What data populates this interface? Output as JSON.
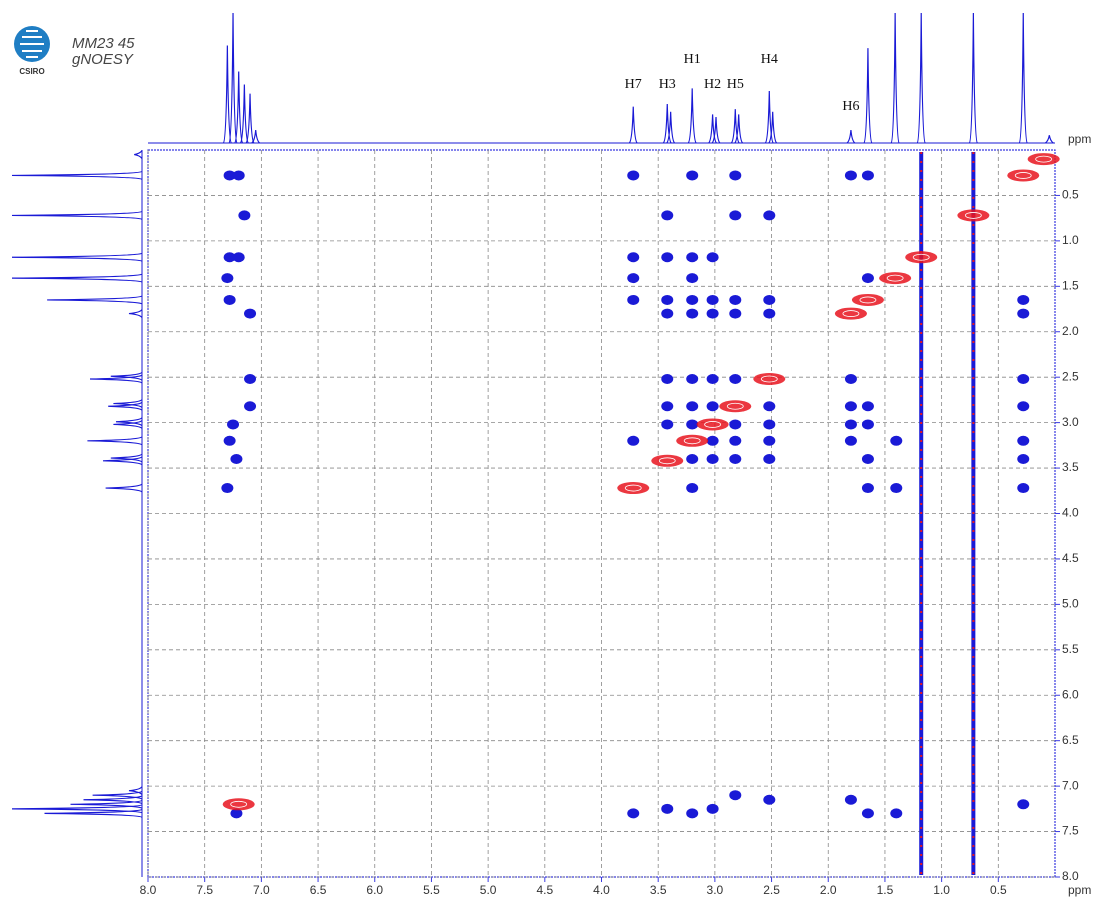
{
  "chart_data": {
    "type": "contour",
    "title_lines": [
      "MM23 45",
      "gNOESY"
    ],
    "logo_text": "CSIRO",
    "x_label": "ppm",
    "y_label": "ppm",
    "xlim": [
      8.0,
      0.0
    ],
    "ylim": [
      0.0,
      8.0
    ],
    "xticks": [
      {
        "value": 8.0,
        "label": "8.0"
      },
      7.5,
      {
        "value": 7.0,
        "label": "7.0"
      },
      6.5,
      {
        "value": 6.0,
        "label": "6.0"
      },
      5.5,
      {
        "value": 5.0,
        "label": "5.0"
      },
      4.5,
      {
        "value": 4.0,
        "label": "4.0"
      },
      3.5,
      {
        "value": 3.0,
        "label": "3.0"
      },
      2.5,
      {
        "value": 2.0,
        "label": "2.0"
      },
      1.5,
      {
        "value": 1.0,
        "label": "1.0"
      },
      0.5
    ],
    "yticks": [
      0.5,
      {
        "value": 1.0,
        "label": "1.0"
      },
      1.5,
      {
        "value": 2.0,
        "label": "2.0"
      },
      2.5,
      {
        "value": 3.0,
        "label": "3.0"
      },
      3.5,
      {
        "value": 4.0,
        "label": "4.0"
      },
      4.5,
      {
        "value": 5.0,
        "label": "5.0"
      },
      5.5,
      {
        "value": 6.0,
        "label": "6.0"
      },
      6.5,
      {
        "value": 7.0,
        "label": "7.0"
      },
      7.5,
      {
        "value": 8.0,
        "label": "8.0"
      }
    ],
    "grid": true,
    "projection": {
      "color": "#1a1ad6",
      "ppm": [
        7.3,
        7.25,
        7.2,
        7.15,
        7.1,
        7.05,
        3.72,
        3.42,
        3.39,
        3.2,
        3.02,
        2.99,
        2.82,
        2.79,
        2.52,
        2.49,
        1.8,
        1.65,
        1.41,
        1.18,
        0.72,
        0.28,
        0.05
      ],
      "heights": [
        75,
        100,
        55,
        45,
        38,
        10,
        28,
        30,
        24,
        42,
        22,
        20,
        26,
        22,
        40,
        24,
        10,
        73,
        100,
        100,
        100,
        100,
        6
      ]
    },
    "annotations": [
      {
        "text": "H7",
        "x": 3.72
      },
      {
        "text": "H3",
        "x": 3.42
      },
      {
        "text": "H1",
        "x": 3.2
      },
      {
        "text": "H2",
        "x": 3.02
      },
      {
        "text": "H5",
        "x": 2.82
      },
      {
        "text": "H4",
        "x": 2.52
      },
      {
        "text": "H6",
        "x": 1.8
      }
    ],
    "streaks": [
      1.18,
      0.72
    ],
    "series": [
      {
        "color": "#1a1ad6",
        "x": [
          7.28,
          7.2,
          3.72,
          3.2,
          2.82,
          1.8,
          1.65,
          7.15,
          3.42,
          2.82,
          2.52,
          7.28,
          7.2,
          3.72,
          3.42,
          3.2,
          3.02,
          7.3,
          3.72,
          3.2,
          1.65,
          7.28,
          3.72,
          3.42,
          3.2,
          3.02,
          2.82,
          2.52,
          0.28,
          7.1,
          3.42,
          3.2,
          3.02,
          2.82,
          2.52,
          0.28,
          7.1,
          3.42,
          3.2,
          3.02,
          2.82,
          1.8,
          0.28,
          7.1,
          3.42,
          3.2,
          3.02,
          2.52,
          1.8,
          1.65,
          0.28,
          7.25,
          3.42,
          3.2,
          2.82,
          2.52,
          1.8,
          1.65,
          7.28,
          3.72,
          3.02,
          2.82,
          2.52,
          1.8,
          1.4,
          0.28,
          7.22,
          3.2,
          3.02,
          2.82,
          2.52,
          1.65,
          0.28,
          7.3,
          3.2,
          1.65,
          1.4,
          0.28,
          7.22,
          3.72,
          3.42,
          3.2,
          3.02,
          2.82,
          2.52,
          1.8,
          1.65,
          1.4,
          0.28
        ],
        "y": [
          0.28,
          0.28,
          0.28,
          0.28,
          0.28,
          0.28,
          0.28,
          0.72,
          0.72,
          0.72,
          0.72,
          1.18,
          1.18,
          1.18,
          1.18,
          1.18,
          1.18,
          1.41,
          1.41,
          1.41,
          1.41,
          1.65,
          1.65,
          1.65,
          1.65,
          1.65,
          1.65,
          1.65,
          1.65,
          1.8,
          1.8,
          1.8,
          1.8,
          1.8,
          1.8,
          1.8,
          2.52,
          2.52,
          2.52,
          2.52,
          2.52,
          2.52,
          2.52,
          2.82,
          2.82,
          2.82,
          2.82,
          2.82,
          2.82,
          2.82,
          2.82,
          3.02,
          3.02,
          3.02,
          3.02,
          3.02,
          3.02,
          3.02,
          3.2,
          3.2,
          3.2,
          3.2,
          3.2,
          3.2,
          3.2,
          3.2,
          3.4,
          3.4,
          3.4,
          3.4,
          3.4,
          3.4,
          3.4,
          3.72,
          3.72,
          3.72,
          3.72,
          3.72,
          7.3,
          7.3,
          7.25,
          7.3,
          7.25,
          7.1,
          7.15,
          7.15,
          7.3,
          7.3,
          7.2
        ]
      },
      {
        "color": "#e8141e",
        "x": [
          0.1,
          0.28,
          0.72,
          1.18,
          1.41,
          1.65,
          1.8,
          2.52,
          2.82,
          3.02,
          3.2,
          3.42,
          3.72,
          7.2
        ],
        "y": [
          0.1,
          0.28,
          0.72,
          1.18,
          1.41,
          1.65,
          1.8,
          2.52,
          2.82,
          3.02,
          3.2,
          3.42,
          3.72,
          7.2
        ]
      }
    ]
  }
}
